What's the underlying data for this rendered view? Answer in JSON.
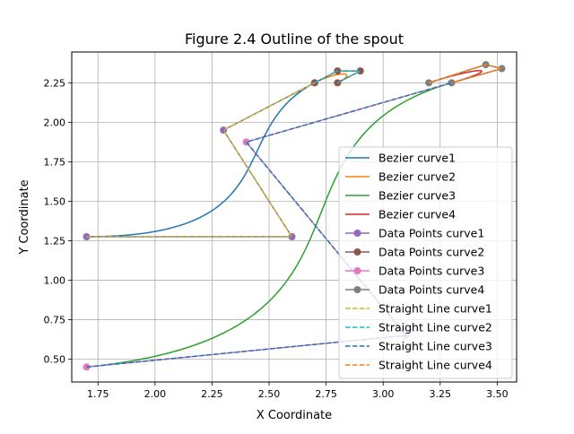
{
  "chart_data": {
    "type": "line",
    "title": "Figure 2.4 Outline of the spout",
    "xlabel": "X Coordinate",
    "ylabel": "Y Coordinate",
    "xlim": [
      1.635,
      3.585
    ],
    "ylim": [
      0.355,
      2.445
    ],
    "xticks": [
      1.75,
      2.0,
      2.25,
      2.5,
      2.75,
      3.0,
      3.25,
      3.5
    ],
    "xtick_labels": [
      "1.75",
      "2.00",
      "2.25",
      "2.50",
      "2.75",
      "3.00",
      "3.25",
      "3.50"
    ],
    "yticks": [
      0.5,
      0.75,
      1.0,
      1.25,
      1.5,
      1.75,
      2.0,
      2.25
    ],
    "ytick_labels": [
      "0.50",
      "0.75",
      "1.00",
      "1.25",
      "1.50",
      "1.75",
      "2.00",
      "2.25"
    ],
    "grid": true,
    "legend_position": "lower-right",
    "colors": {
      "c1": "#1f77b4",
      "c2": "#ff7f0e",
      "c3": "#2ca02c",
      "c4": "#d62728",
      "p1": "#9467bd",
      "p2": "#8c564b",
      "p3": "#e377c2",
      "p4": "#7f7f7f",
      "s1": "#bcbd22",
      "s2": "#17becf"
    },
    "series": [
      {
        "name": "Bezier curve1",
        "kind": "bezier",
        "color": "c1",
        "points": [
          [
            1.7,
            1.275
          ],
          [
            2.6,
            1.275
          ],
          [
            2.3,
            1.95
          ],
          [
            2.7,
            2.25
          ]
        ]
      },
      {
        "name": "Bezier curve2",
        "kind": "bezier",
        "color": "c2",
        "points": [
          [
            2.7,
            2.25
          ],
          [
            2.8,
            2.325
          ],
          [
            2.9,
            2.325
          ],
          [
            2.8,
            2.25
          ]
        ]
      },
      {
        "name": "Bezier curve3",
        "kind": "bezier",
        "color": "c3",
        "points": [
          [
            1.7,
            0.45
          ],
          [
            3.1,
            0.65
          ],
          [
            2.4,
            1.875
          ],
          [
            3.3,
            2.25
          ]
        ]
      },
      {
        "name": "Bezier curve4",
        "kind": "bezier",
        "color": "c4",
        "points": [
          [
            3.2,
            2.25
          ],
          [
            3.45,
            2.365
          ],
          [
            3.52,
            2.34
          ],
          [
            3.3,
            2.25
          ]
        ]
      },
      {
        "name": "Data Points curve1",
        "kind": "points",
        "color": "p1",
        "points": [
          [
            1.7,
            1.275
          ],
          [
            2.6,
            1.275
          ],
          [
            2.3,
            1.95
          ],
          [
            2.7,
            2.25
          ]
        ]
      },
      {
        "name": "Data Points curve2",
        "kind": "points",
        "color": "p2",
        "points": [
          [
            2.7,
            2.25
          ],
          [
            2.8,
            2.325
          ],
          [
            2.9,
            2.325
          ],
          [
            2.8,
            2.25
          ]
        ]
      },
      {
        "name": "Data Points curve3",
        "kind": "points",
        "color": "p3",
        "points": [
          [
            1.7,
            0.45
          ],
          [
            3.1,
            0.65
          ],
          [
            2.4,
            1.875
          ],
          [
            3.3,
            2.25
          ]
        ]
      },
      {
        "name": "Data Points curve4",
        "kind": "points",
        "color": "p4",
        "points": [
          [
            3.2,
            2.25
          ],
          [
            3.45,
            2.365
          ],
          [
            3.52,
            2.34
          ],
          [
            3.3,
            2.25
          ]
        ]
      },
      {
        "name": "Straight Line curve1",
        "kind": "dashed",
        "color": "s1",
        "points": [
          [
            1.7,
            1.275
          ],
          [
            2.6,
            1.275
          ],
          [
            2.3,
            1.95
          ],
          [
            2.7,
            2.25
          ]
        ]
      },
      {
        "name": "Straight Line curve2",
        "kind": "dashed",
        "color": "s2",
        "points": [
          [
            2.7,
            2.25
          ],
          [
            2.8,
            2.325
          ],
          [
            2.9,
            2.325
          ],
          [
            2.8,
            2.25
          ]
        ]
      },
      {
        "name": "Straight Line curve3",
        "kind": "dashed",
        "color": "c1",
        "points": [
          [
            1.7,
            0.45
          ],
          [
            3.1,
            0.65
          ],
          [
            2.4,
            1.875
          ],
          [
            3.3,
            2.25
          ]
        ]
      },
      {
        "name": "Straight Line curve4",
        "kind": "dashed",
        "color": "c2",
        "points": [
          [
            3.2,
            2.25
          ],
          [
            3.45,
            2.365
          ],
          [
            3.52,
            2.34
          ],
          [
            3.3,
            2.25
          ]
        ]
      }
    ]
  }
}
